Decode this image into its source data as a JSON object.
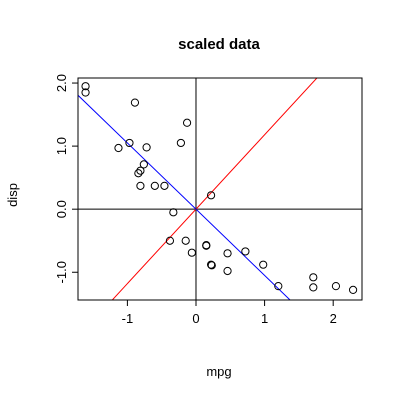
{
  "chart_data": {
    "type": "scatter",
    "title": "scaled data",
    "xlabel": "mpg",
    "ylabel": "disp",
    "xlim": [
      -1.72,
      2.42
    ],
    "ylim": [
      -1.44,
      2.08
    ],
    "x_ticks": [
      -1,
      0,
      1,
      2
    ],
    "x_tick_labels": [
      "-1",
      "0",
      "1",
      "2"
    ],
    "y_ticks": [
      -1.0,
      0.0,
      1.0,
      2.0
    ],
    "y_tick_labels": [
      "-1.0",
      "0.0",
      "1.0",
      "2.0"
    ],
    "grid": false,
    "reference_lines": [
      {
        "kind": "horizontal",
        "value": 0,
        "color": "#000000"
      },
      {
        "kind": "vertical",
        "value": 0,
        "color": "#000000"
      },
      {
        "kind": "slope",
        "intercept": 0,
        "slope": 1.18,
        "color": "#ff0000"
      },
      {
        "kind": "slope",
        "intercept": 0,
        "slope": -1.05,
        "color": "#0000ff"
      }
    ],
    "points": [
      {
        "x": -1.61,
        "y": 1.95
      },
      {
        "x": -1.61,
        "y": 1.85
      },
      {
        "x": -0.89,
        "y": 1.69
      },
      {
        "x": -0.97,
        "y": 1.05
      },
      {
        "x": -1.13,
        "y": 0.97
      },
      {
        "x": -0.72,
        "y": 0.98
      },
      {
        "x": -0.13,
        "y": 1.37
      },
      {
        "x": -0.22,
        "y": 1.05
      },
      {
        "x": -0.76,
        "y": 0.71
      },
      {
        "x": -0.81,
        "y": 0.61
      },
      {
        "x": -0.84,
        "y": 0.57
      },
      {
        "x": -0.81,
        "y": 0.37
      },
      {
        "x": -0.6,
        "y": 0.37
      },
      {
        "x": -0.46,
        "y": 0.37
      },
      {
        "x": 0.22,
        "y": 0.22
      },
      {
        "x": -0.33,
        "y": -0.05
      },
      {
        "x": -0.38,
        "y": -0.5
      },
      {
        "x": -0.15,
        "y": -0.5
      },
      {
        "x": 0.15,
        "y": -0.57
      },
      {
        "x": 0.15,
        "y": -0.58
      },
      {
        "x": -0.06,
        "y": -0.69
      },
      {
        "x": 0.46,
        "y": -0.7
      },
      {
        "x": 0.72,
        "y": -0.67
      },
      {
        "x": 0.22,
        "y": -0.88
      },
      {
        "x": 0.23,
        "y": -0.89
      },
      {
        "x": 0.46,
        "y": -0.98
      },
      {
        "x": 0.98,
        "y": -0.88
      },
      {
        "x": 1.2,
        "y": -1.22
      },
      {
        "x": 1.71,
        "y": -1.08
      },
      {
        "x": 1.71,
        "y": -1.24
      },
      {
        "x": 2.04,
        "y": -1.22
      },
      {
        "x": 2.29,
        "y": -1.28
      }
    ]
  }
}
